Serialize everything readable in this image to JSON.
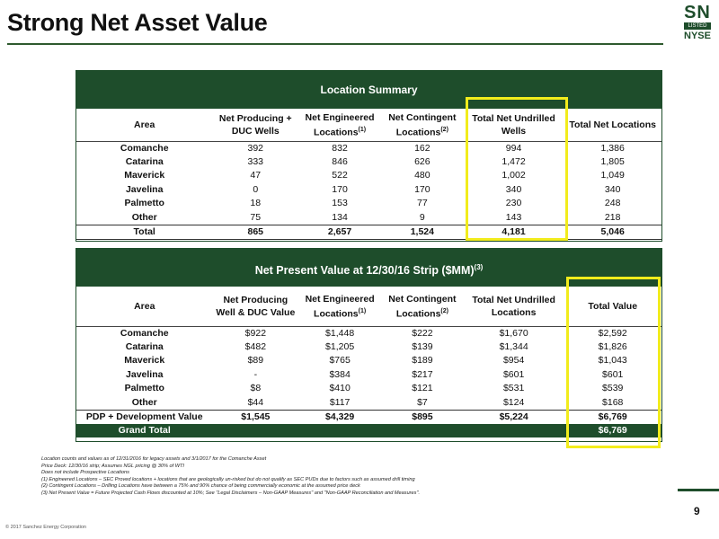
{
  "title": "Strong Net Asset Value",
  "logo": {
    "sn": "SN",
    "listed": "LISTED",
    "nyse": "NYSE"
  },
  "location_summary": {
    "title": "Location Summary",
    "headers": {
      "area": "Area",
      "net_producing": "Net Producing + DUC Wells",
      "net_engineered": "Net Engineered Locations",
      "net_engineered_note": "(1)",
      "net_contingent": "Net Contingent Locations",
      "net_contingent_note": "(2)",
      "undrilled": "Total Net Undrilled Wells",
      "total": "Total Net Locations"
    },
    "rows": [
      {
        "area": "Comanche",
        "producing": "392",
        "engineered": "832",
        "contingent": "162",
        "undrilled": "994",
        "total": "1,386"
      },
      {
        "area": "Catarina",
        "producing": "333",
        "engineered": "846",
        "contingent": "626",
        "undrilled": "1,472",
        "total": "1,805"
      },
      {
        "area": "Maverick",
        "producing": "47",
        "engineered": "522",
        "contingent": "480",
        "undrilled": "1,002",
        "total": "1,049"
      },
      {
        "area": "Javelina",
        "producing": "0",
        "engineered": "170",
        "contingent": "170",
        "undrilled": "340",
        "total": "340"
      },
      {
        "area": "Palmetto",
        "producing": "18",
        "engineered": "153",
        "contingent": "77",
        "undrilled": "230",
        "total": "248"
      },
      {
        "area": "Other",
        "producing": "75",
        "engineered": "134",
        "contingent": "9",
        "undrilled": "143",
        "total": "218"
      },
      {
        "area": "Total",
        "producing": "865",
        "engineered": "2,657",
        "contingent": "1,524",
        "undrilled": "4,181",
        "total": "5,046"
      }
    ]
  },
  "npv": {
    "title": "Net Present Value at 12/30/16 Strip ($MM)",
    "title_note": "(3)",
    "headers": {
      "area": "Area",
      "net_producing": "Net Producing Well & DUC Value",
      "net_engineered": "Net Engineered Locations",
      "net_engineered_note": "(1)",
      "net_contingent": "Net Contingent Locations",
      "net_contingent_note": "(2)",
      "undrilled": "Total Net Undrilled Locations",
      "total": "Total Value"
    },
    "rows": [
      {
        "area": "Comanche",
        "producing": "$922",
        "engineered": "$1,448",
        "contingent": "$222",
        "undrilled": "$1,670",
        "total": "$2,592"
      },
      {
        "area": "Catarina",
        "producing": "$482",
        "engineered": "$1,205",
        "contingent": "$139",
        "undrilled": "$1,344",
        "total": "$1,826"
      },
      {
        "area": "Maverick",
        "producing": "$89",
        "engineered": "$765",
        "contingent": "$189",
        "undrilled": "$954",
        "total": "$1,043"
      },
      {
        "area": "Javelina",
        "producing": "-",
        "engineered": "$384",
        "contingent": "$217",
        "undrilled": "$601",
        "total": "$601"
      },
      {
        "area": "Palmetto",
        "producing": "$8",
        "engineered": "$410",
        "contingent": "$121",
        "undrilled": "$531",
        "total": "$539"
      },
      {
        "area": "Other",
        "producing": "$44",
        "engineered": "$117",
        "contingent": "$7",
        "undrilled": "$124",
        "total": "$168"
      },
      {
        "area": "PDP + Development Value",
        "producing": "$1,545",
        "engineered": "$4,329",
        "contingent": "$895",
        "undrilled": "$5,224",
        "total": "$6,769"
      },
      {
        "area": "Grand Total",
        "producing": "",
        "engineered": "",
        "contingent": "",
        "undrilled": "",
        "total": "$6,769"
      }
    ]
  },
  "notes": [
    "Location counts and values as of 12/31/2016 for legacy assets and 3/1/2017 for the Comanche Asset",
    "Price Deck: 12/30/16 strip; Assumes NGL pricing @ 30% of WTI",
    "Does not include Prospective Locations",
    "(1)      Engineered Locations – SEC Proved locations + locations that are geologically un-risked but do not qualify as SEC PUDs due to factors such as assumed drill timing",
    "(2)      Contingent Locations –  Drilling Locations have between a 75% and 90% chance of being commercially economic at the assumed price deck",
    "(3)      Net Present Value = Future Projected Cash Flows discounted at 10%; See \"Legal Disclaimers – Non-GAAP Measures\" and \"Non-GAAP Reconciliation and Measures\"."
  ],
  "page_number": "9",
  "copyright": "© 2017 Sanchez Energy Corporation",
  "colors": {
    "brand_green": "#1e4d2b",
    "highlight": "#f2ec1c"
  }
}
